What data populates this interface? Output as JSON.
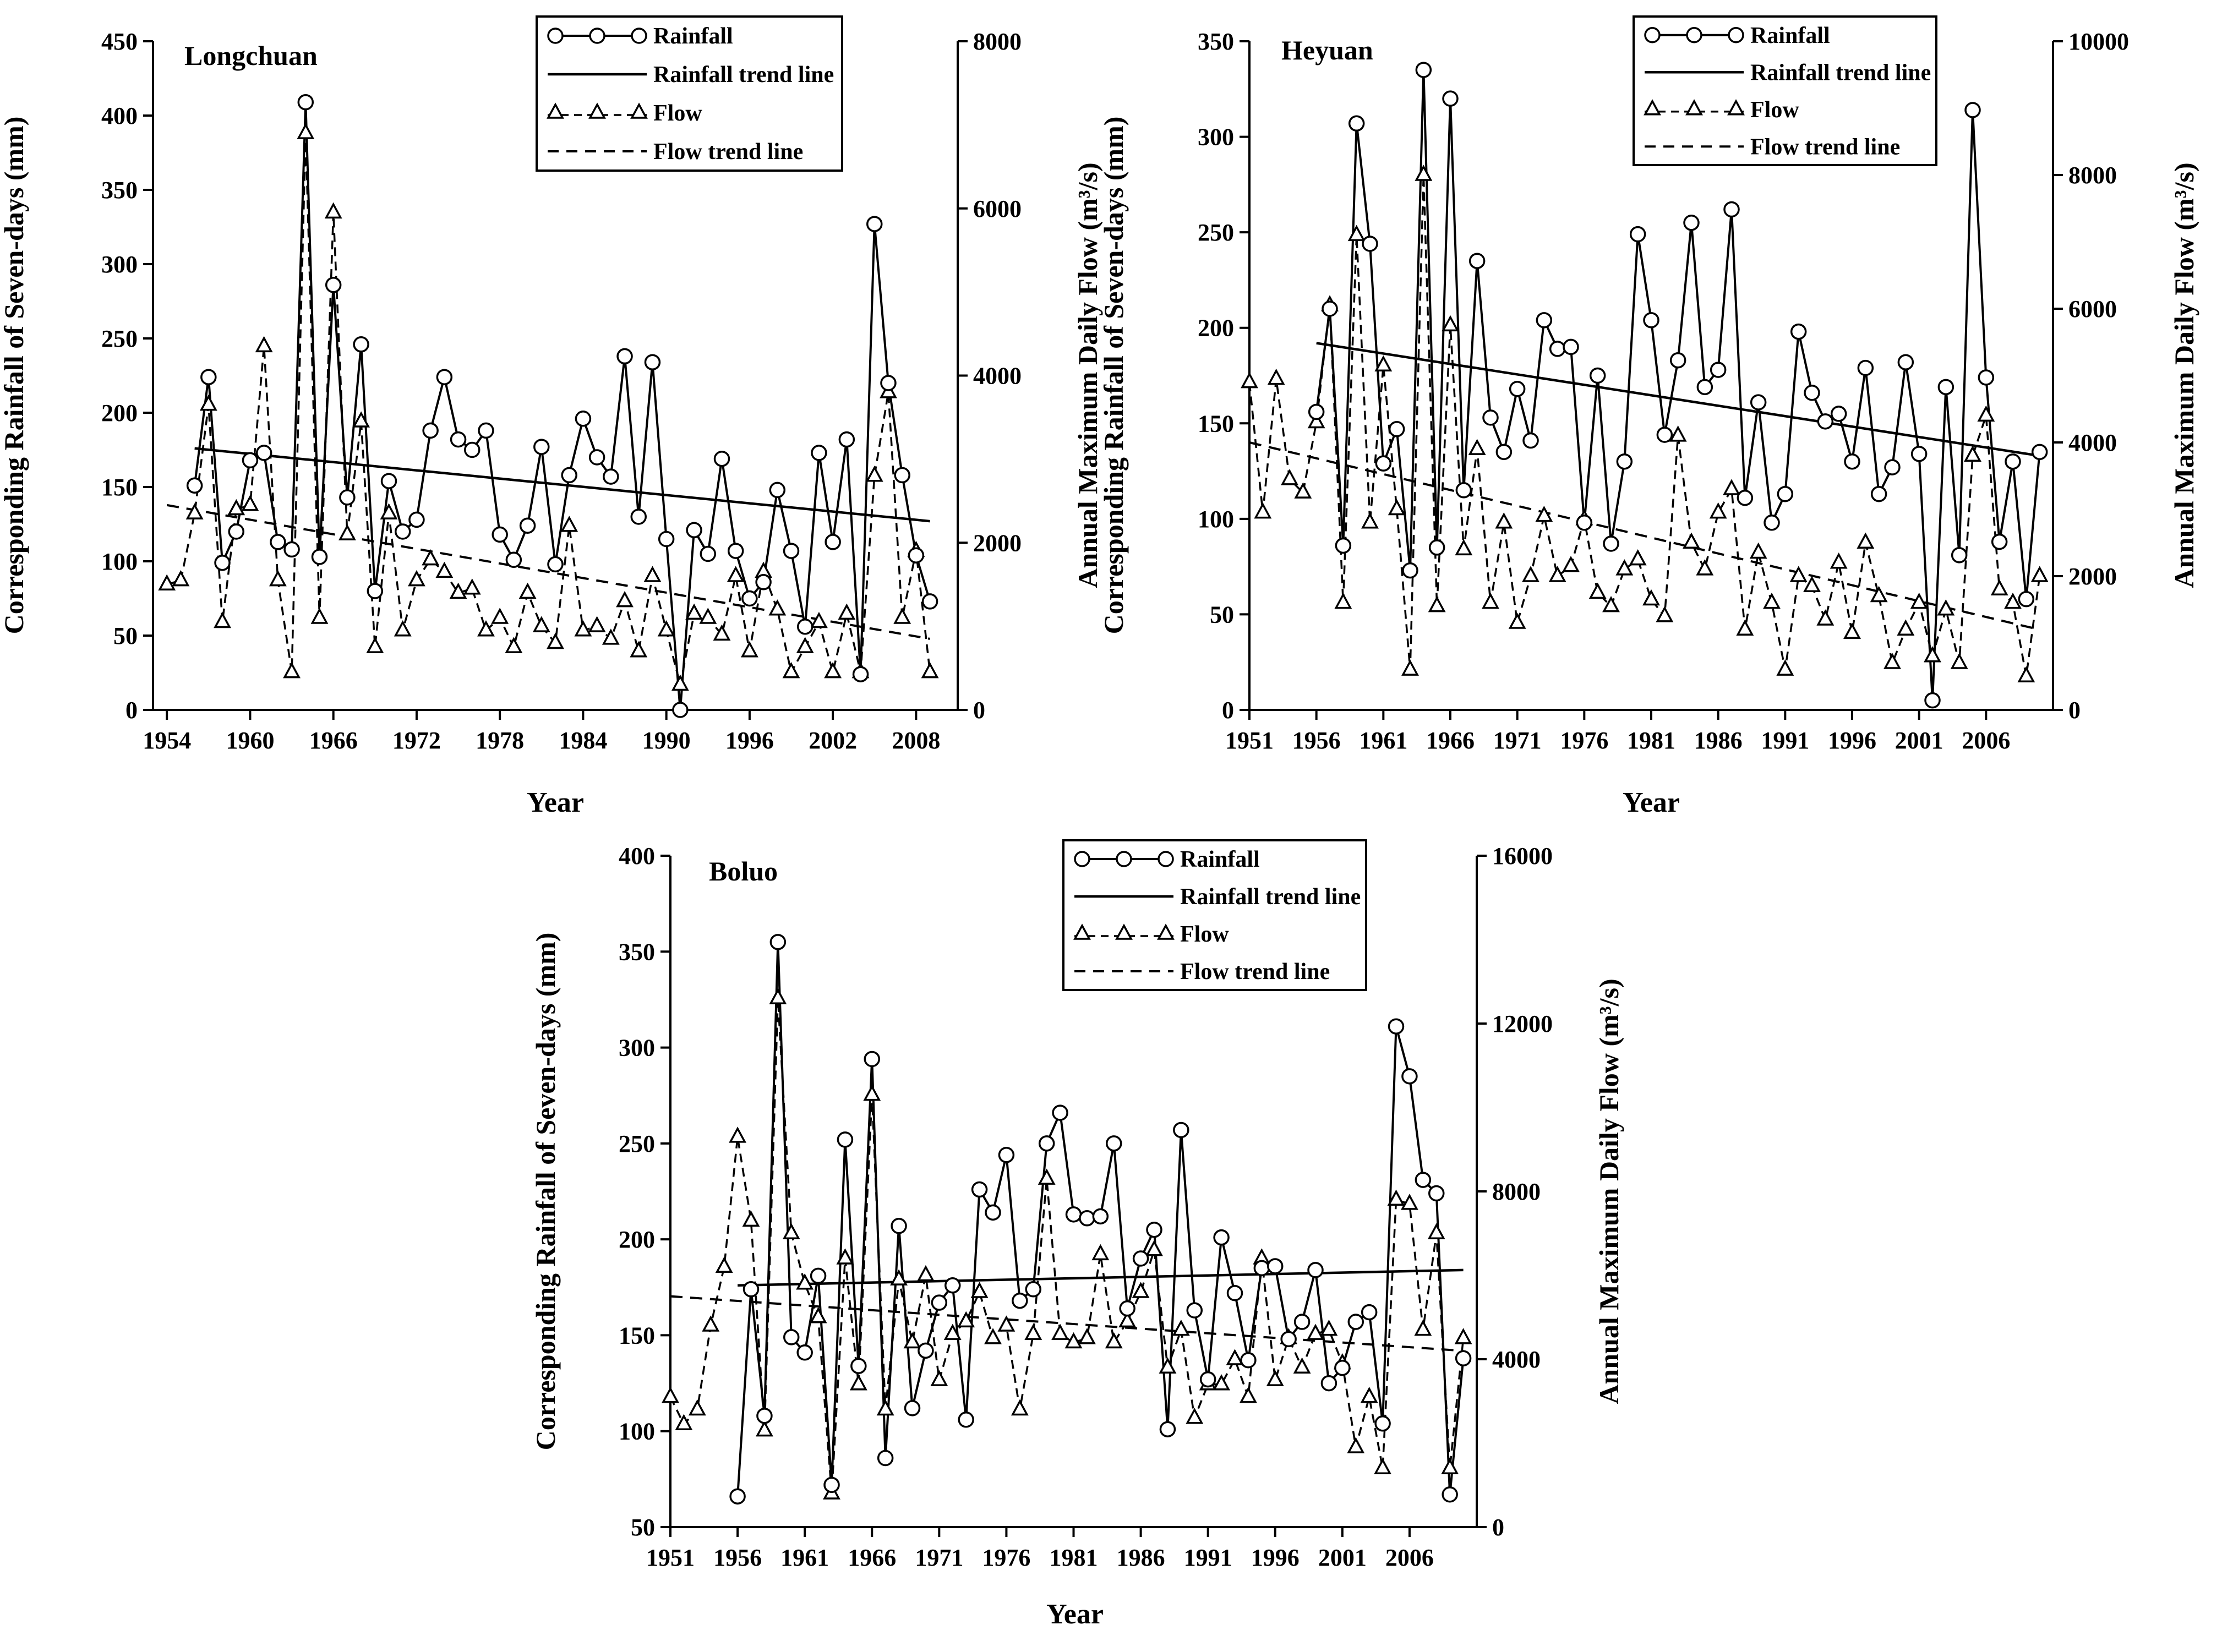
{
  "chart_data": [
    {
      "type": "line",
      "title": "Longchuan",
      "xlabel": "Year",
      "ylabel_left": "Corresponding Rainfall of Seven-days (mm)",
      "ylabel_right": "Annual Maximum Daily Flow  (m³/s)",
      "xlim": [
        1953,
        2011
      ],
      "ylim_left": [
        0,
        450
      ],
      "ylim_right": [
        0,
        8000
      ],
      "x_ticks": [
        1954,
        1960,
        1966,
        1972,
        1978,
        1984,
        1990,
        1996,
        2002,
        2008
      ],
      "y_ticks_left": [
        0,
        50,
        100,
        150,
        200,
        250,
        300,
        350,
        400,
        450
      ],
      "y_ticks_right": [
        0,
        2000,
        4000,
        6000,
        8000
      ],
      "legend": [
        "Rainfall",
        "Rainfall trend line",
        "Flow",
        "Flow trend line"
      ],
      "series": [
        {
          "name": "Rainfall",
          "axis": "left",
          "x": [
            1956,
            1957,
            1958,
            1959,
            1960,
            1961,
            1962,
            1963,
            1964,
            1965,
            1966,
            1967,
            1968,
            1969,
            1970,
            1971,
            1972,
            1973,
            1974,
            1975,
            1976,
            1977,
            1978,
            1979,
            1980,
            1981,
            1982,
            1983,
            1984,
            1985,
            1986,
            1987,
            1988,
            1989,
            1990,
            1991,
            1992,
            1993,
            1994,
            1995,
            1996,
            1997,
            1998,
            1999,
            2000,
            2001,
            2002,
            2003,
            2004,
            2005,
            2006,
            2007,
            2008,
            2009
          ],
          "y": [
            151,
            224,
            99,
            120,
            168,
            173,
            113,
            108,
            409,
            103,
            286,
            143,
            246,
            80,
            154,
            120,
            128,
            188,
            224,
            182,
            175,
            188,
            118,
            101,
            124,
            177,
            98,
            158,
            196,
            170,
            157,
            238,
            130,
            234,
            115,
            0,
            121,
            105,
            169,
            107,
            75,
            86,
            148,
            107,
            56,
            173,
            113,
            182,
            24,
            327,
            220,
            158,
            104,
            73
          ]
        },
        {
          "name": "Rainfall trend line",
          "axis": "left",
          "x": [
            1956,
            2009
          ],
          "y": [
            176,
            127
          ]
        },
        {
          "name": "Flow",
          "axis": "right",
          "x": [
            1954,
            1955,
            1956,
            1957,
            1958,
            1959,
            1960,
            1961,
            1962,
            1963,
            1964,
            1965,
            1966,
            1967,
            1968,
            1969,
            1970,
            1971,
            1972,
            1973,
            1974,
            1975,
            1976,
            1977,
            1978,
            1979,
            1980,
            1981,
            1982,
            1983,
            1984,
            1985,
            1986,
            1987,
            1988,
            1989,
            1990,
            1991,
            1992,
            1993,
            1994,
            1995,
            1996,
            1997,
            1998,
            1999,
            2000,
            2001,
            2002,
            2003,
            2004,
            2005,
            2006,
            2007,
            2008,
            2009
          ],
          "y": [
            1500,
            1550,
            2350,
            3650,
            1050,
            2400,
            2450,
            4350,
            1550,
            450,
            6900,
            1100,
            5950,
            2100,
            3450,
            750,
            2350,
            950,
            1550,
            1800,
            1650,
            1400,
            1450,
            950,
            1100,
            750,
            1400,
            1000,
            800,
            2200,
            950,
            1000,
            850,
            1300,
            700,
            1600,
            950,
            300,
            1150,
            1100,
            900,
            1600,
            700,
            1650,
            1200,
            450,
            750,
            1050,
            450,
            1150,
            450,
            2800,
            3800,
            1100,
            1900,
            450
          ]
        },
        {
          "name": "Flow trend line",
          "axis": "right",
          "x": [
            1954,
            2009
          ],
          "y": [
            2450,
            850
          ]
        }
      ]
    },
    {
      "type": "line",
      "title": "Heyuan",
      "xlabel": "Year",
      "ylabel_left": "Corresponding Rainfall of Seven-days (mm)",
      "ylabel_right": "Annual Maximum Daily Flow  (m³/s)",
      "xlim": [
        1951,
        2011
      ],
      "ylim_left": [
        0,
        350
      ],
      "ylim_right": [
        0,
        10000
      ],
      "x_ticks": [
        1951,
        1956,
        1961,
        1966,
        1971,
        1976,
        1981,
        1986,
        1991,
        1996,
        2001,
        2006
      ],
      "y_ticks_left": [
        0,
        50,
        100,
        150,
        200,
        250,
        300,
        350
      ],
      "y_ticks_right": [
        0,
        2000,
        4000,
        6000,
        8000,
        10000
      ],
      "legend": [
        "Rainfall",
        "Rainfall trend line",
        "Flow",
        "Flow trend line"
      ],
      "series": [
        {
          "name": "Rainfall",
          "axis": "left",
          "x": [
            1956,
            1957,
            1958,
            1959,
            1960,
            1961,
            1962,
            1963,
            1964,
            1965,
            1966,
            1967,
            1968,
            1969,
            1970,
            1971,
            1972,
            1973,
            1974,
            1975,
            1976,
            1977,
            1978,
            1979,
            1980,
            1981,
            1982,
            1983,
            1984,
            1985,
            1986,
            1987,
            1988,
            1989,
            1990,
            1991,
            1992,
            1993,
            1994,
            1995,
            1996,
            1997,
            1998,
            1999,
            2000,
            2001,
            2002,
            2003,
            2004,
            2005,
            2006,
            2007,
            2008,
            2009,
            2010
          ],
          "y": [
            156,
            210,
            86,
            307,
            244,
            129,
            147,
            73,
            335,
            85,
            320,
            115,
            235,
            153,
            135,
            168,
            141,
            204,
            189,
            190,
            98,
            175,
            87,
            130,
            249,
            204,
            144,
            183,
            255,
            169,
            178,
            262,
            111,
            161,
            98,
            113,
            198,
            166,
            151,
            155,
            130,
            179,
            113,
            127,
            182,
            134,
            5,
            169,
            81,
            314,
            174,
            88,
            130,
            58,
            135
          ]
        },
        {
          "name": "Rainfall trend line",
          "axis": "left",
          "x": [
            1956,
            2010
          ],
          "y": [
            192,
            133
          ]
        },
        {
          "name": "Flow",
          "axis": "right",
          "x": [
            1951,
            1952,
            1953,
            1954,
            1955,
            1956,
            1957,
            1958,
            1959,
            1960,
            1961,
            1962,
            1963,
            1964,
            1965,
            1966,
            1967,
            1968,
            1969,
            1970,
            1971,
            1972,
            1973,
            1974,
            1975,
            1976,
            1977,
            1978,
            1979,
            1980,
            1981,
            1982,
            1983,
            1984,
            1985,
            1986,
            1987,
            1988,
            1989,
            1990,
            1991,
            1992,
            1993,
            1994,
            1995,
            1996,
            1997,
            1998,
            1999,
            2000,
            2001,
            2002,
            2003,
            2004,
            2005,
            2006,
            2007,
            2008,
            2009,
            2010
          ],
          "y": [
            4900,
            2950,
            4950,
            3450,
            3250,
            4300,
            6050,
            1600,
            7100,
            2800,
            5150,
            3000,
            600,
            8000,
            1550,
            5750,
            2400,
            3900,
            1600,
            2800,
            1300,
            2000,
            2900,
            2000,
            2150,
            2850,
            1750,
            1550,
            2100,
            2250,
            1650,
            1400,
            4100,
            2500,
            2100,
            2950,
            3300,
            1200,
            2350,
            1600,
            600,
            2000,
            1850,
            1350,
            2200,
            1150,
            2500,
            1700,
            700,
            1200,
            1600,
            800,
            1500,
            700,
            3800,
            4400,
            1800,
            1600,
            500,
            2000
          ]
        },
        {
          "name": "Flow trend line",
          "axis": "right",
          "x": [
            1951,
            2010
          ],
          "y": [
            4000,
            1200
          ]
        }
      ]
    },
    {
      "type": "line",
      "title": "Boluo",
      "xlabel": "Year",
      "ylabel_left": "Corresponding Rainfall of Seven-days (mm)",
      "ylabel_right": "Annual Maximum Daily Flow  (m³/s)",
      "xlim": [
        1951,
        2011
      ],
      "ylim_left": [
        50,
        400
      ],
      "ylim_right": [
        0,
        16000
      ],
      "x_ticks": [
        1951,
        1956,
        1961,
        1966,
        1971,
        1976,
        1981,
        1986,
        1991,
        1996,
        2001,
        2006
      ],
      "y_ticks_left": [
        50,
        100,
        150,
        200,
        250,
        300,
        350,
        400
      ],
      "y_ticks_right": [
        0,
        4000,
        8000,
        12000,
        16000
      ],
      "legend": [
        "Rainfall",
        "Rainfall trend line",
        "Flow",
        "Flow trend line"
      ],
      "series": [
        {
          "name": "Rainfall",
          "axis": "left",
          "x": [
            1956,
            1957,
            1958,
            1959,
            1960,
            1961,
            1962,
            1963,
            1964,
            1965,
            1966,
            1967,
            1968,
            1969,
            1970,
            1971,
            1972,
            1973,
            1974,
            1975,
            1976,
            1977,
            1978,
            1979,
            1980,
            1981,
            1982,
            1983,
            1984,
            1985,
            1986,
            1987,
            1988,
            1989,
            1990,
            1991,
            1992,
            1993,
            1994,
            1995,
            1996,
            1997,
            1998,
            1999,
            2000,
            2001,
            2002,
            2003,
            2004,
            2005,
            2006,
            2007,
            2008,
            2009,
            2010
          ],
          "y": [
            66,
            174,
            108,
            355,
            149,
            141,
            181,
            72,
            252,
            134,
            294,
            86,
            207,
            112,
            142,
            167,
            176,
            106,
            226,
            214,
            244,
            168,
            174,
            250,
            266,
            213,
            211,
            212,
            250,
            164,
            190,
            205,
            101,
            257,
            163,
            127,
            201,
            172,
            137,
            185,
            186,
            148,
            157,
            184,
            125,
            133,
            157,
            162,
            104,
            311,
            285,
            231,
            224,
            67,
            138
          ]
        },
        {
          "name": "Rainfall trend line",
          "axis": "left",
          "x": [
            1956,
            2010
          ],
          "y": [
            176,
            184
          ]
        },
        {
          "name": "Flow",
          "axis": "right",
          "x": [
            1951,
            1952,
            1953,
            1954,
            1955,
            1956,
            1957,
            1958,
            1959,
            1960,
            1961,
            1962,
            1963,
            1964,
            1965,
            1966,
            1967,
            1968,
            1969,
            1970,
            1971,
            1972,
            1973,
            1974,
            1975,
            1976,
            1977,
            1978,
            1979,
            1980,
            1981,
            1982,
            1983,
            1984,
            1985,
            1986,
            1987,
            1988,
            1989,
            1990,
            1991,
            1992,
            1993,
            1994,
            1995,
            1996,
            1997,
            1998,
            1999,
            2000,
            2001,
            2002,
            2003,
            2004,
            2005,
            2006,
            2007,
            2008,
            2009,
            2010
          ],
          "y": [
            3100,
            2450,
            2800,
            4800,
            6200,
            9300,
            7300,
            2300,
            12600,
            7000,
            5800,
            5000,
            800,
            6400,
            3400,
            10300,
            2800,
            5900,
            4400,
            6000,
            3500,
            4600,
            4900,
            5600,
            4500,
            4800,
            2800,
            4600,
            8300,
            4600,
            4400,
            4500,
            6500,
            4400,
            4900,
            5600,
            6600,
            3800,
            4700,
            2600,
            3400,
            3400,
            4000,
            3100,
            6400,
            3500,
            4500,
            3800,
            4600,
            4700,
            3900,
            1900,
            3100,
            1400,
            7800,
            7700,
            4700,
            7000,
            1400,
            4500
          ]
        },
        {
          "name": "Flow trend line",
          "axis": "right",
          "x": [
            1951,
            2010
          ],
          "y": [
            5500,
            4200
          ]
        }
      ]
    }
  ]
}
